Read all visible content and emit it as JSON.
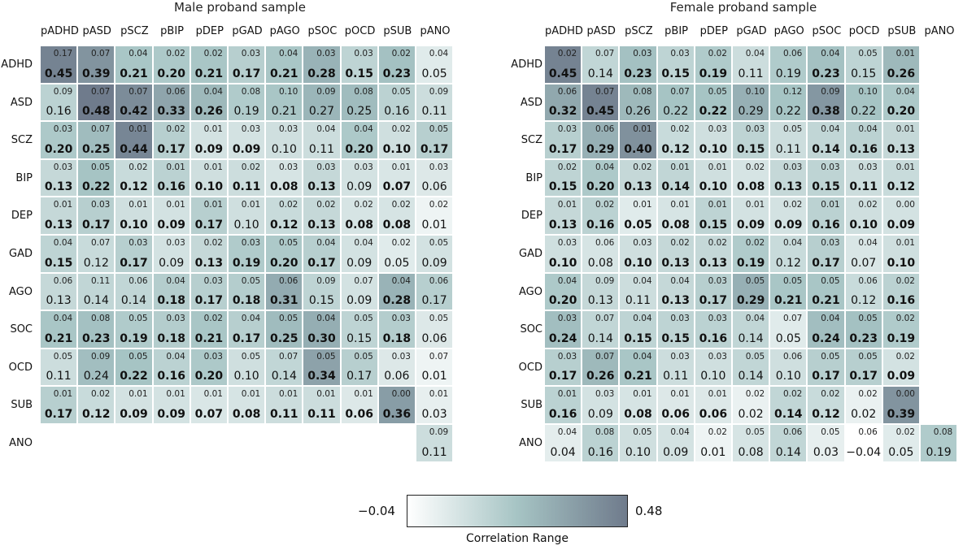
{
  "chart_data": [
    {
      "type": "heatmap",
      "title": "Male proband sample",
      "columns": [
        "pADHD",
        "pASD",
        "pSCZ",
        "pBIP",
        "pDEP",
        "pGAD",
        "pAGO",
        "pSOC",
        "pOCD",
        "pSUB",
        "pANO"
      ],
      "rows": [
        "ADHD",
        "ASD",
        "SCZ",
        "BIP",
        "DEP",
        "GAD",
        "AGO",
        "SOC",
        "OCD",
        "SUB",
        "ANO"
      ],
      "values": [
        [
          0.45,
          0.39,
          0.21,
          0.2,
          0.21,
          0.17,
          0.21,
          0.28,
          0.15,
          0.23,
          0.05
        ],
        [
          0.16,
          0.48,
          0.42,
          0.33,
          0.26,
          0.19,
          0.21,
          0.27,
          0.25,
          0.16,
          0.11
        ],
        [
          0.2,
          0.25,
          0.44,
          0.17,
          0.09,
          0.09,
          0.1,
          0.11,
          0.2,
          0.1,
          0.17
        ],
        [
          0.13,
          0.22,
          0.12,
          0.16,
          0.1,
          0.11,
          0.08,
          0.13,
          0.09,
          0.07,
          0.06
        ],
        [
          0.13,
          0.17,
          0.1,
          0.09,
          0.17,
          0.1,
          0.12,
          0.13,
          0.08,
          0.08,
          0.01
        ],
        [
          0.15,
          0.12,
          0.17,
          0.09,
          0.13,
          0.19,
          0.2,
          0.17,
          0.09,
          0.05,
          0.09
        ],
        [
          0.13,
          0.14,
          0.14,
          0.18,
          0.17,
          0.18,
          0.31,
          0.15,
          0.09,
          0.28,
          0.17
        ],
        [
          0.21,
          0.23,
          0.19,
          0.18,
          0.21,
          0.17,
          0.25,
          0.3,
          0.15,
          0.18,
          0.06
        ],
        [
          0.11,
          0.24,
          0.22,
          0.16,
          0.2,
          0.1,
          0.14,
          0.34,
          0.17,
          0.06,
          0.01
        ],
        [
          0.17,
          0.12,
          0.09,
          0.09,
          0.07,
          0.08,
          0.11,
          0.11,
          0.06,
          0.36,
          0.03
        ],
        [
          null,
          null,
          null,
          null,
          null,
          null,
          null,
          null,
          null,
          null,
          0.11
        ]
      ],
      "value_labels": [
        [
          "0.45",
          "0.39",
          "0.21",
          "0.20",
          "0.21",
          "0.17",
          "0.21",
          "0.28",
          "0.15",
          "0.23",
          "0.05"
        ],
        [
          "0.16",
          "0.48",
          "0.42",
          "0.33",
          "0.26",
          "0.19",
          "0.21",
          "0.27",
          "0.25",
          "0.16",
          "0.11"
        ],
        [
          "0.20",
          "0.25",
          "0.44",
          "0.17",
          "0.09",
          "0.09",
          "0.10",
          "0.11",
          "0.20",
          "0.10",
          "0.17"
        ],
        [
          "0.13",
          "0.22",
          "0.12",
          "0.16",
          "0.10",
          "0.11",
          "0.08",
          "0.13",
          "0.09",
          "0.07",
          "0.06"
        ],
        [
          "0.13",
          "0.17",
          "0.10",
          "0.09",
          "0.17",
          "0.10",
          "0.12",
          "0.13",
          "0.08",
          "0.08",
          "0.01"
        ],
        [
          "0.15",
          "0.12",
          "0.17",
          "0.09",
          "0.13",
          "0.19",
          "0.20",
          "0.17",
          "0.09",
          "0.05",
          "0.09"
        ],
        [
          "0.13",
          "0.14",
          "0.14",
          "0.18",
          "0.17",
          "0.18",
          "0.31",
          "0.15",
          "0.09",
          "0.28",
          "0.17"
        ],
        [
          "0.21",
          "0.23",
          "0.19",
          "0.18",
          "0.21",
          "0.17",
          "0.25",
          "0.30",
          "0.15",
          "0.18",
          "0.06"
        ],
        [
          "0.11",
          "0.24",
          "0.22",
          "0.16",
          "0.20",
          "0.10",
          "0.14",
          "0.34",
          "0.17",
          "0.06",
          "0.01"
        ],
        [
          "0.17",
          "0.12",
          "0.09",
          "0.09",
          "0.07",
          "0.08",
          "0.11",
          "0.11",
          "0.06",
          "0.36",
          "0.03"
        ],
        [
          null,
          null,
          null,
          null,
          null,
          null,
          null,
          null,
          null,
          null,
          "0.11"
        ]
      ],
      "se_labels": [
        [
          "0.17",
          "0.07",
          "0.04",
          "0.02",
          "0.02",
          "0.03",
          "0.04",
          "0.03",
          "0.03",
          "0.02",
          "0.04"
        ],
        [
          "0.09",
          "0.07",
          "0.07",
          "0.06",
          "0.04",
          "0.08",
          "0.10",
          "0.09",
          "0.08",
          "0.05",
          "0.09"
        ],
        [
          "0.03",
          "0.07",
          "0.01",
          "0.02",
          "0.01",
          "0.03",
          "0.03",
          "0.04",
          "0.04",
          "0.02",
          "0.05"
        ],
        [
          "0.03",
          "0.05",
          "0.02",
          "0.01",
          "0.01",
          "0.02",
          "0.03",
          "0.03",
          "0.03",
          "0.01",
          "0.03"
        ],
        [
          "0.01",
          "0.03",
          "0.01",
          "0.01",
          "0.01",
          "0.01",
          "0.02",
          "0.02",
          "0.02",
          "0.02",
          "0.02"
        ],
        [
          "0.04",
          "0.07",
          "0.03",
          "0.03",
          "0.02",
          "0.03",
          "0.05",
          "0.04",
          "0.04",
          "0.02",
          "0.05"
        ],
        [
          "0.06",
          "0.11",
          "0.06",
          "0.04",
          "0.03",
          "0.05",
          "0.06",
          "0.09",
          "0.07",
          "0.04",
          "0.06"
        ],
        [
          "0.04",
          "0.08",
          "0.05",
          "0.03",
          "0.02",
          "0.04",
          "0.05",
          "0.04",
          "0.05",
          "0.03",
          "0.05"
        ],
        [
          "0.05",
          "0.09",
          "0.05",
          "0.04",
          "0.03",
          "0.05",
          "0.07",
          "0.05",
          "0.05",
          "0.03",
          "0.07"
        ],
        [
          "0.01",
          "0.02",
          "0.01",
          "0.01",
          "0.01",
          "0.01",
          "0.01",
          "0.01",
          "0.01",
          "0.00",
          "0.01"
        ],
        [
          null,
          null,
          null,
          null,
          null,
          null,
          null,
          null,
          null,
          null,
          "0.09"
        ]
      ],
      "bold": [
        [
          1,
          1,
          1,
          1,
          1,
          1,
          1,
          1,
          1,
          1,
          0
        ],
        [
          0,
          1,
          1,
          1,
          1,
          0,
          0,
          0,
          0,
          0,
          0
        ],
        [
          1,
          1,
          1,
          1,
          1,
          1,
          0,
          0,
          1,
          1,
          1
        ],
        [
          1,
          1,
          1,
          1,
          1,
          1,
          1,
          1,
          0,
          1,
          0
        ],
        [
          1,
          1,
          1,
          1,
          1,
          0,
          1,
          1,
          1,
          1,
          0
        ],
        [
          1,
          0,
          1,
          0,
          1,
          1,
          1,
          1,
          0,
          0,
          0
        ],
        [
          0,
          0,
          0,
          1,
          1,
          1,
          1,
          0,
          0,
          1,
          0
        ],
        [
          1,
          1,
          1,
          1,
          1,
          1,
          1,
          1,
          0,
          1,
          0
        ],
        [
          0,
          0,
          1,
          1,
          1,
          0,
          0,
          1,
          0,
          0,
          0
        ],
        [
          1,
          1,
          1,
          1,
          1,
          1,
          1,
          1,
          1,
          1,
          0
        ],
        [
          0,
          0,
          0,
          0,
          0,
          0,
          0,
          0,
          0,
          0,
          0
        ]
      ]
    },
    {
      "type": "heatmap",
      "title": "Female proband sample",
      "columns": [
        "pADHD",
        "pASD",
        "pSCZ",
        "pBIP",
        "pDEP",
        "pGAD",
        "pAGO",
        "pSOC",
        "pOCD",
        "pSUB",
        "pANO"
      ],
      "rows": [
        "ADHD",
        "ASD",
        "SCZ",
        "BIP",
        "DEP",
        "GAD",
        "AGO",
        "SOC",
        "OCD",
        "SUB",
        "ANO"
      ],
      "values": [
        [
          0.45,
          0.14,
          0.23,
          0.15,
          0.19,
          0.11,
          0.19,
          0.23,
          0.15,
          0.26,
          null
        ],
        [
          0.32,
          0.45,
          0.26,
          0.22,
          0.22,
          0.29,
          0.22,
          0.38,
          0.22,
          0.2,
          null
        ],
        [
          0.17,
          0.29,
          0.4,
          0.12,
          0.1,
          0.15,
          0.11,
          0.14,
          0.16,
          0.13,
          null
        ],
        [
          0.15,
          0.2,
          0.13,
          0.14,
          0.1,
          0.08,
          0.13,
          0.15,
          0.11,
          0.12,
          null
        ],
        [
          0.13,
          0.16,
          0.05,
          0.08,
          0.15,
          0.09,
          0.09,
          0.16,
          0.1,
          0.09,
          null
        ],
        [
          0.1,
          0.08,
          0.1,
          0.13,
          0.13,
          0.19,
          0.12,
          0.17,
          0.07,
          0.1,
          null
        ],
        [
          0.2,
          0.13,
          0.11,
          0.13,
          0.17,
          0.29,
          0.21,
          0.21,
          0.12,
          0.16,
          null
        ],
        [
          0.24,
          0.14,
          0.15,
          0.15,
          0.16,
          0.14,
          0.05,
          0.24,
          0.23,
          0.19,
          null
        ],
        [
          0.17,
          0.26,
          0.21,
          0.11,
          0.1,
          0.14,
          0.1,
          0.17,
          0.17,
          0.09,
          null
        ],
        [
          0.16,
          0.09,
          0.08,
          0.06,
          0.06,
          0.02,
          0.14,
          0.12,
          0.02,
          0.39,
          null
        ],
        [
          0.04,
          0.16,
          0.1,
          0.09,
          0.01,
          0.08,
          0.14,
          0.03,
          -0.04,
          0.05,
          0.19
        ]
      ],
      "value_labels": [
        [
          "0.45",
          "0.14",
          "0.23",
          "0.15",
          "0.19",
          "0.11",
          "0.19",
          "0.23",
          "0.15",
          "0.26",
          null
        ],
        [
          "0.32",
          "0.45",
          "0.26",
          "0.22",
          "0.22",
          "0.29",
          "0.22",
          "0.38",
          "0.22",
          "0.20",
          null
        ],
        [
          "0.17",
          "0.29",
          "0.40",
          "0.12",
          "0.10",
          "0.15",
          "0.11",
          "0.14",
          "0.16",
          "0.13",
          null
        ],
        [
          "0.15",
          "0.20",
          "0.13",
          "0.14",
          "0.10",
          "0.08",
          "0.13",
          "0.15",
          "0.11",
          "0.12",
          null
        ],
        [
          "0.13",
          "0.16",
          "0.05",
          "0.08",
          "0.15",
          "0.09",
          "0.09",
          "0.16",
          "0.10",
          "0.09",
          null
        ],
        [
          "0.10",
          "0.08",
          "0.10",
          "0.13",
          "0.13",
          "0.19",
          "0.12",
          "0.17",
          "0.07",
          "0.10",
          null
        ],
        [
          "0.20",
          "0.13",
          "0.11",
          "0.13",
          "0.17",
          "0.29",
          "0.21",
          "0.21",
          "0.12",
          "0.16",
          null
        ],
        [
          "0.24",
          "0.14",
          "0.15",
          "0.15",
          "0.16",
          "0.14",
          "0.05",
          "0.24",
          "0.23",
          "0.19",
          null
        ],
        [
          "0.17",
          "0.26",
          "0.21",
          "0.11",
          "0.10",
          "0.14",
          "0.10",
          "0.17",
          "0.17",
          "0.09",
          null
        ],
        [
          "0.16",
          "0.09",
          "0.08",
          "0.06",
          "0.06",
          "0.02",
          "0.14",
          "0.12",
          "0.02",
          "0.39",
          null
        ],
        [
          "0.04",
          "0.16",
          "0.10",
          "0.09",
          "0.01",
          "0.08",
          "0.14",
          "0.03",
          "−0.04",
          "0.05",
          "0.19"
        ]
      ],
      "se_labels": [
        [
          "0.02",
          "0.07",
          "0.03",
          "0.03",
          "0.02",
          "0.04",
          "0.06",
          "0.04",
          "0.05",
          "0.01",
          null
        ],
        [
          "0.06",
          "0.07",
          "0.08",
          "0.07",
          "0.05",
          "0.10",
          "0.12",
          "0.09",
          "0.10",
          "0.04",
          null
        ],
        [
          "0.03",
          "0.06",
          "0.01",
          "0.02",
          "0.03",
          "0.03",
          "0.05",
          "0.04",
          "0.04",
          "0.01",
          null
        ],
        [
          "0.02",
          "0.04",
          "0.02",
          "0.01",
          "0.01",
          "0.02",
          "0.03",
          "0.03",
          "0.03",
          "0.01",
          null
        ],
        [
          "0.01",
          "0.02",
          "0.01",
          "0.01",
          "0.01",
          "0.01",
          "0.02",
          "0.01",
          "0.02",
          "0.00",
          null
        ],
        [
          "0.03",
          "0.06",
          "0.03",
          "0.02",
          "0.02",
          "0.02",
          "0.04",
          "0.03",
          "0.04",
          "0.01",
          null
        ],
        [
          "0.04",
          "0.09",
          "0.04",
          "0.04",
          "0.03",
          "0.05",
          "0.05",
          "0.05",
          "0.06",
          "0.02",
          null
        ],
        [
          "0.03",
          "0.07",
          "0.04",
          "0.03",
          "0.03",
          "0.04",
          "0.07",
          "0.04",
          "0.05",
          "0.02",
          null
        ],
        [
          "0.03",
          "0.07",
          "0.04",
          "0.03",
          "0.03",
          "0.05",
          "0.06",
          "0.05",
          "0.05",
          "0.02",
          null
        ],
        [
          "0.01",
          "0.03",
          "0.01",
          "0.01",
          "0.01",
          "0.02",
          "0.02",
          "0.02",
          "0.02",
          "0.00",
          null
        ],
        [
          "0.04",
          "0.08",
          "0.05",
          "0.04",
          "0.02",
          "0.05",
          "0.06",
          "0.05",
          "0.06",
          "0.02",
          "0.08"
        ]
      ],
      "bold": [
        [
          1,
          0,
          1,
          1,
          1,
          0,
          0,
          1,
          0,
          1,
          0
        ],
        [
          1,
          1,
          0,
          0,
          1,
          0,
          0,
          1,
          0,
          1,
          0
        ],
        [
          1,
          1,
          1,
          1,
          1,
          1,
          0,
          1,
          1,
          1,
          0
        ],
        [
          1,
          1,
          1,
          1,
          1,
          1,
          1,
          1,
          1,
          1,
          0
        ],
        [
          1,
          1,
          1,
          1,
          1,
          1,
          1,
          1,
          1,
          1,
          0
        ],
        [
          1,
          0,
          1,
          1,
          1,
          1,
          0,
          1,
          0,
          1,
          0
        ],
        [
          1,
          0,
          0,
          1,
          1,
          1,
          1,
          1,
          0,
          1,
          0
        ],
        [
          1,
          0,
          1,
          1,
          1,
          0,
          0,
          1,
          1,
          1,
          0
        ],
        [
          1,
          1,
          1,
          0,
          0,
          0,
          0,
          1,
          1,
          1,
          0
        ],
        [
          1,
          0,
          1,
          1,
          1,
          0,
          1,
          1,
          0,
          1,
          0
        ],
        [
          0,
          0,
          0,
          0,
          0,
          0,
          0,
          0,
          0,
          0,
          0
        ]
      ]
    }
  ],
  "legend": {
    "min_label": "−0.04",
    "max_label": "0.48",
    "title": "Correlation Range",
    "min": -0.04,
    "max": 0.48
  },
  "colors": {
    "low": "#ffffff",
    "mid": "#a6c4c4",
    "high": "#6f7b8c"
  }
}
